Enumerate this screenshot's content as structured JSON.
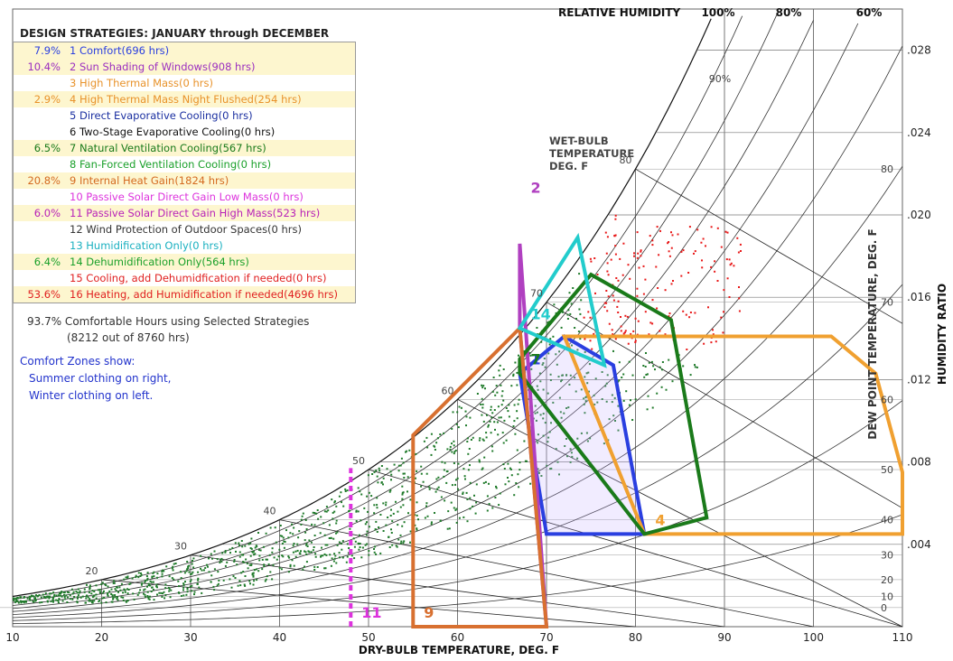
{
  "chart_data": {
    "type": "scatter",
    "chart_kind": "psychrometric",
    "xlabel": "DRY-BULB TEMPERATURE, DEG. F",
    "ylabel": "HUMIDITY RATIO",
    "dewpoint_label": "DEW POINT TEMPERATURE, DEG. F",
    "wetbulb_label": "WET-BULB TEMPERATURE DEG. F",
    "wetbulb_label_lines": [
      "WET-BULB",
      "TEMPERATURE",
      "DEG. F"
    ],
    "rh_label": "RELATIVE HUMIDITY",
    "xlim": [
      10,
      110
    ],
    "ylim": [
      0,
      0.03
    ],
    "x_ticks": [
      10,
      20,
      30,
      40,
      50,
      60,
      70,
      80,
      90,
      100,
      110
    ],
    "y_ticks": [
      0.004,
      0.008,
      0.012,
      0.016,
      0.02,
      0.024,
      0.028
    ],
    "y_tick_labels": [
      ".004",
      ".008",
      ".012",
      ".016",
      ".020",
      ".024",
      ".028"
    ],
    "dewpoint_ticks": [
      0,
      10,
      20,
      30,
      40,
      50,
      60,
      70,
      80
    ],
    "wetbulb_ticks": [
      20,
      30,
      40,
      50,
      60,
      70,
      80
    ],
    "rh_top_labels": [
      "100%",
      "80%",
      "60%"
    ],
    "rh_inline_label": "90%",
    "grid": true,
    "strategy_zones": [
      {
        "id": "1",
        "name": "Comfort",
        "color": "#2a3fe0",
        "points": [
          [
            67,
            0.0123
          ],
          [
            70,
            0.0045
          ],
          [
            81,
            0.0045
          ],
          [
            77.5,
            0.0127
          ],
          [
            72,
            0.0141
          ]
        ]
      },
      {
        "id": "2",
        "name": "Sun Shading of Windows",
        "color": "#b040c0",
        "points": [
          [
            67,
            0.0145
          ],
          [
            67,
            0.0186
          ],
          [
            70,
            0
          ]
        ]
      },
      {
        "id": "4",
        "name": "High Thermal Mass Night Flushed",
        "color": "#f0a030",
        "points": [
          [
            81,
            0.0045
          ],
          [
            110,
            0.0045
          ],
          [
            110,
            0.0075
          ],
          [
            107,
            0.0123
          ],
          [
            102,
            0.0141
          ],
          [
            72,
            0.0141
          ]
        ]
      },
      {
        "id": "7",
        "name": "Natural Ventilation Cooling",
        "color": "#1a7a1a",
        "points": [
          [
            67,
            0.0123
          ],
          [
            67,
            0.013
          ],
          [
            75,
            0.0171
          ],
          [
            84,
            0.0149
          ],
          [
            88,
            0.0053
          ],
          [
            81,
            0.0045
          ]
        ]
      },
      {
        "id": "9",
        "name": "Internal Heat Gain",
        "color": "#d87030",
        "points": [
          [
            55,
            0
          ],
          [
            55,
            0.0093
          ],
          [
            67,
            0.0145
          ],
          [
            70,
            0
          ]
        ]
      },
      {
        "id": "11",
        "name": "Passive Solar Direct Gain High Mass",
        "color": "#dd33dd",
        "points": [
          [
            48,
            0
          ],
          [
            48,
            0.0077
          ]
        ]
      },
      {
        "id": "14",
        "name": "Dehumidification Only",
        "color": "#22cccc",
        "points": [
          [
            67,
            0.0145
          ],
          [
            73.5,
            0.0189
          ],
          [
            76.5,
            0.0127
          ]
        ]
      }
    ]
  },
  "header": {
    "title": "DESIGN STRATEGIES:  JANUARY through DECEMBER"
  },
  "legend": [
    {
      "pct": "7.9%",
      "label": "1 Comfort(696 hrs)",
      "color": "#2a3fe0"
    },
    {
      "pct": "10.4%",
      "label": "2 Sun Shading of Windows(908 hrs)",
      "color": "#9b2fc0"
    },
    {
      "pct": "",
      "label": "3 High Thermal Mass(0 hrs)",
      "color": "#e8922a"
    },
    {
      "pct": "2.9%",
      "label": "4 High Thermal Mass Night Flushed(254 hrs)",
      "color": "#e8922a"
    },
    {
      "pct": "",
      "label": "5 Direct Evaporative Cooling(0 hrs)",
      "color": "#1a2fa0"
    },
    {
      "pct": "",
      "label": "6 Two-Stage Evaporative Cooling(0 hrs)",
      "color": "#111111"
    },
    {
      "pct": "6.5%",
      "label": "7 Natural Ventilation Cooling(567 hrs)",
      "color": "#1a7a1a"
    },
    {
      "pct": "",
      "label": "8 Fan-Forced Ventilation Cooling(0 hrs)",
      "color": "#1aa02a"
    },
    {
      "pct": "20.8%",
      "label": "9 Internal Heat Gain(1824 hrs)",
      "color": "#d46a20"
    },
    {
      "pct": "",
      "label": "10 Passive Solar Direct Gain Low Mass(0 hrs)",
      "color": "#dd33dd"
    },
    {
      "pct": "6.0%",
      "label": "11 Passive Solar Direct Gain High Mass(523 hrs)",
      "color": "#b822b8"
    },
    {
      "pct": "",
      "label": "12 Wind Protection of Outdoor Spaces(0 hrs)",
      "color": "#333333"
    },
    {
      "pct": "",
      "label": "13 Humidification Only(0 hrs)",
      "color": "#1ab0c0"
    },
    {
      "pct": "6.4%",
      "label": "14 Dehumidification Only(564 hrs)",
      "color": "#1aa02a"
    },
    {
      "pct": "",
      "label": "15 Cooling, add Dehumidfication if needed(0 hrs)",
      "color": "#e02020"
    },
    {
      "pct": "53.6%",
      "label": "16 Heating, add Humidification if needed(4696 hrs)",
      "color": "#e02020"
    }
  ],
  "summary": {
    "line1": "93.7%  Comfortable Hours using Selected Strategies",
    "line2": "(8212 out of 8760 hrs)"
  },
  "comfort_note": {
    "line1": "Comfort Zones show:",
    "line2": "Summer clothing on right,",
    "line3": "Winter clothing on left."
  }
}
